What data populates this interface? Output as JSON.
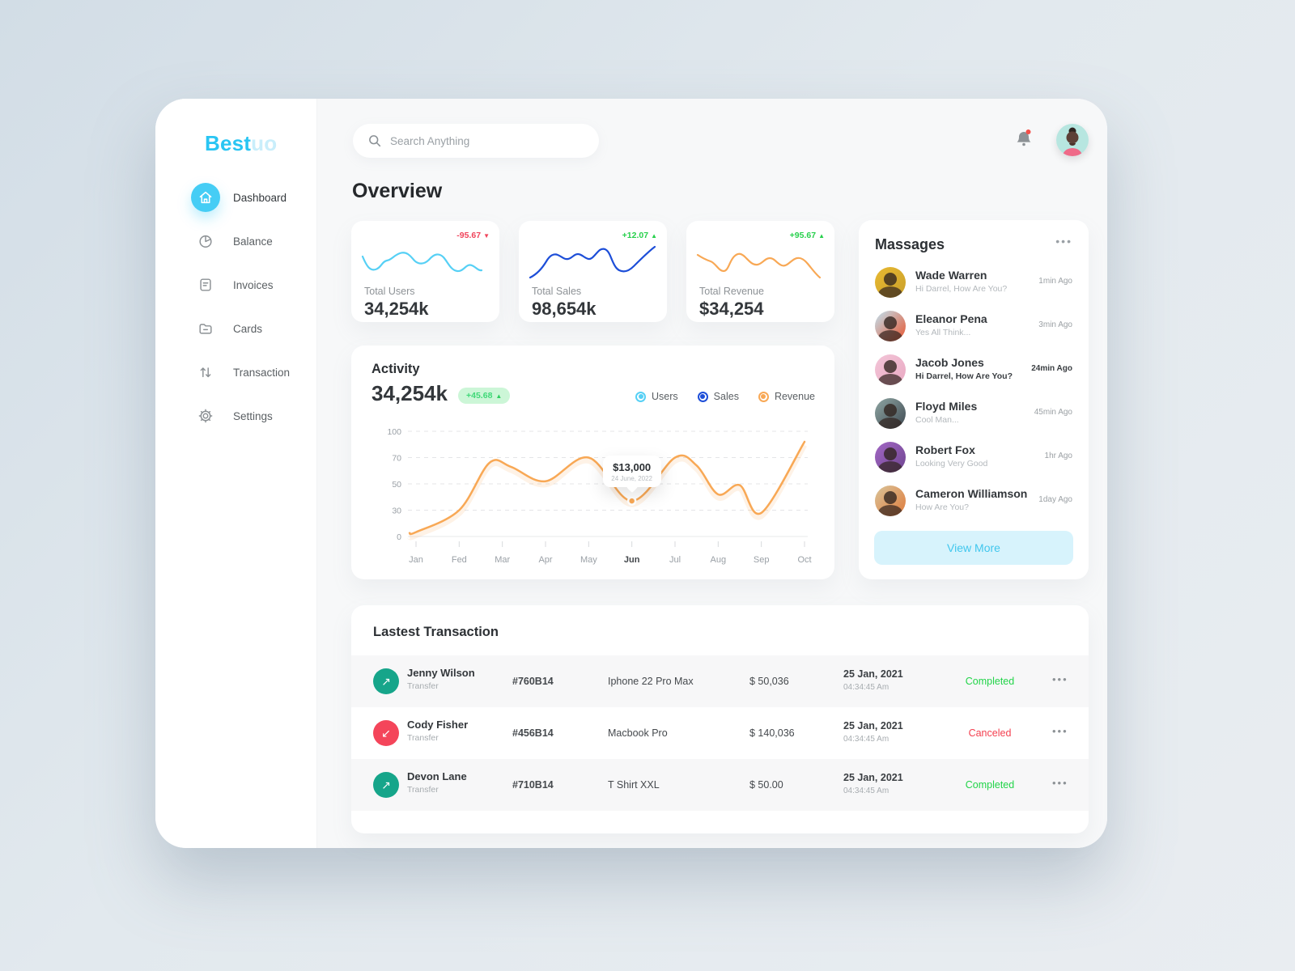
{
  "app": {
    "logo_primary": "Best",
    "logo_secondary": "uo"
  },
  "header": {
    "search_placeholder": "Search Anything",
    "notification_unread": true
  },
  "sidebar": {
    "items": [
      {
        "label": "Dashboard",
        "icon": "home",
        "active": true
      },
      {
        "label": "Balance",
        "icon": "pie-chart",
        "active": false
      },
      {
        "label": "Invoices",
        "icon": "invoice",
        "active": false
      },
      {
        "label": "Cards",
        "icon": "folder",
        "active": false
      },
      {
        "label": "Transaction",
        "icon": "arrows-up-down",
        "active": false
      },
      {
        "label": "Settings",
        "icon": "gear",
        "active": false
      }
    ]
  },
  "page_title": "Overview",
  "stats": [
    {
      "label": "Total Users",
      "value": "34,254k",
      "change": "-95.67",
      "direction": "down",
      "color": "#56d0f5"
    },
    {
      "label": "Total Sales",
      "value": "98,654k",
      "change": "+12.07",
      "direction": "up",
      "color": "#1d4ed8"
    },
    {
      "label": "Total Revenue",
      "value": "$34,254",
      "change": "+95.67",
      "direction": "up",
      "color": "#f8a855"
    }
  ],
  "activity": {
    "title": "Activity",
    "value": "34,254k",
    "change_badge": "+45.68",
    "legend": [
      {
        "label": "Users",
        "color": "#56d0f5"
      },
      {
        "label": "Sales",
        "color": "#1d4ed8"
      },
      {
        "label": "Revenue",
        "color": "#f8a855"
      }
    ],
    "tooltip": {
      "value": "$13,000",
      "date": "24 June, 2022"
    },
    "chart_data": {
      "type": "line",
      "x_labels": [
        "Jan",
        "Fed",
        "Mar",
        "Apr",
        "May",
        "Jun",
        "Jul",
        "Aug",
        "Sep",
        "Oct"
      ],
      "highlight_label": "Jun",
      "y_ticks": [
        0,
        30,
        50,
        70,
        100
      ],
      "series": [
        {
          "name": "Revenue",
          "color": "#f8a855",
          "points": [
            [
              -0.15,
              4
            ],
            [
              0,
              5
            ],
            [
              1,
              30
            ],
            [
              1.7,
              66
            ],
            [
              2.2,
              63
            ],
            [
              3,
              52
            ],
            [
              4,
              70
            ],
            [
              5,
              37
            ],
            [
              6,
              70
            ],
            [
              6.5,
              64
            ],
            [
              7,
              42
            ],
            [
              7.5,
              49
            ],
            [
              8,
              27
            ],
            [
              9,
              88
            ]
          ]
        }
      ],
      "tooltip_point": [
        5,
        37
      ],
      "grid": "dashed-horizontal",
      "legend_position": "top-right"
    }
  },
  "messages": {
    "title": "Massages",
    "items": [
      {
        "name": "Wade Warren",
        "preview": "Hi Darrel, How Are You?",
        "time": "1min Ago",
        "unread": false,
        "avatar": [
          "#e8b931",
          "#caa02a"
        ]
      },
      {
        "name": "Eleanor Pena",
        "preview": "Yes All Think...",
        "time": "3min Ago",
        "unread": false,
        "avatar": [
          "#bfe3f2",
          "#e8542e"
        ]
      },
      {
        "name": "Jacob Jones",
        "preview": "Hi Darrel, How Are You?",
        "time": "24min Ago",
        "unread": true,
        "avatar": [
          "#f3c6d8",
          "#e9a8c2"
        ]
      },
      {
        "name": "Floyd Miles",
        "preview": "Cool Man...",
        "time": "45min Ago",
        "unread": false,
        "avatar": [
          "#8fa6a3",
          "#3f4a52"
        ]
      },
      {
        "name": "Robert Fox",
        "preview": "Looking Very Good",
        "time": "1hr Ago",
        "unread": false,
        "avatar": [
          "#a267c4",
          "#6f4590"
        ]
      },
      {
        "name": "Cameron Williamson",
        "preview": "How Are You?",
        "time": "1day Ago",
        "unread": false,
        "avatar": [
          "#d9c49a",
          "#e07b3a"
        ]
      }
    ],
    "view_more_label": "View More"
  },
  "transactions": {
    "title": "Lastest Transaction",
    "rows": [
      {
        "name": "Jenny Wilson",
        "type": "Transfer",
        "id": "#760B14",
        "product": "Iphone 22 Pro Max",
        "amount": "$ 50,036",
        "date": "25 Jan, 2021",
        "time": "04:34:45 Am",
        "status": "Completed",
        "direction": "out"
      },
      {
        "name": "Cody Fisher",
        "type": "Transfer",
        "id": "#456B14",
        "product": "Macbook Pro",
        "amount": "$ 140,036",
        "date": "25 Jan, 2021",
        "time": "04:34:45 Am",
        "status": "Canceled",
        "direction": "in"
      },
      {
        "name": "Devon Lane",
        "type": "Transfer",
        "id": "#710B14",
        "product": "T Shirt XXL",
        "amount": "$ 50.00",
        "date": "25 Jan, 2021",
        "time": "04:34:45 Am",
        "status": "Completed",
        "direction": "out"
      }
    ]
  },
  "colors": {
    "accent_cyan": "#35c7f1",
    "light_cyan_button": "#d7f3fc",
    "positive": "#27d04c",
    "negative": "#f0445b",
    "status_completed": "#21d448",
    "status_canceled": "#f43f4f",
    "icon_out_bg": "#16a58a",
    "icon_in_bg": "#f4455a",
    "chart_line": "#f8a855"
  }
}
